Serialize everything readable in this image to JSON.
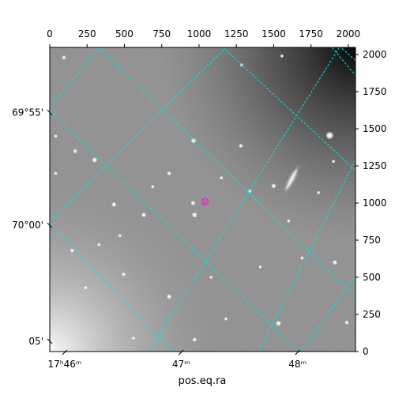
{
  "chart_data": {
    "type": "image",
    "xlabel": "pos.eq.ra",
    "ylabel": "",
    "pixel_axes": {
      "xlim": [
        0,
        2048
      ],
      "ylim": [
        0,
        2048
      ],
      "top_ticks": [
        0,
        250,
        500,
        750,
        1000,
        1250,
        1500,
        1750,
        2000
      ],
      "right_ticks": [
        0,
        250,
        500,
        750,
        1000,
        1250,
        1500,
        1750,
        2000
      ]
    },
    "ra_ticks": [
      {
        "label": "17ʰ46ᵐ",
        "x": 100
      },
      {
        "label": "47ᵐ",
        "x": 880
      },
      {
        "label": "48ᵐ",
        "x": 1660
      }
    ],
    "dec_ticks": [
      {
        "label": "69°55'",
        "y": 1610
      },
      {
        "label": "70°00'",
        "y": 850
      },
      {
        "label": "05'",
        "y": 70
      }
    ],
    "grid": true,
    "grid_color": "#00e5e5",
    "marker": {
      "type": "circle",
      "color": "#cc33cc",
      "x": 1040,
      "y": 1010
    },
    "stars": [
      {
        "x": 1875,
        "y": 1455,
        "b": 1.0
      },
      {
        "x": 1500,
        "y": 1115,
        "b": 0.5
      },
      {
        "x": 963,
        "y": 1420,
        "b": 0.6
      },
      {
        "x": 300,
        "y": 1290,
        "b": 0.6
      },
      {
        "x": 430,
        "y": 990,
        "b": 0.5
      },
      {
        "x": 630,
        "y": 920,
        "b": 0.5
      },
      {
        "x": 970,
        "y": 920,
        "b": 0.6
      },
      {
        "x": 960,
        "y": 1000,
        "b": 0.5
      },
      {
        "x": 800,
        "y": 1200,
        "b": 0.4
      },
      {
        "x": 150,
        "y": 680,
        "b": 0.4
      },
      {
        "x": 495,
        "y": 520,
        "b": 0.4
      },
      {
        "x": 800,
        "y": 370,
        "b": 0.5
      },
      {
        "x": 1532,
        "y": 190,
        "b": 0.6
      },
      {
        "x": 1990,
        "y": 195,
        "b": 0.4
      },
      {
        "x": 1910,
        "y": 600,
        "b": 0.5
      },
      {
        "x": 95,
        "y": 1980,
        "b": 0.4
      },
      {
        "x": 1285,
        "y": 1930,
        "b": 0.3
      },
      {
        "x": 1555,
        "y": 1990,
        "b": 0.3
      },
      {
        "x": 170,
        "y": 1350,
        "b": 0.4
      },
      {
        "x": 1280,
        "y": 1385,
        "b": 0.4
      },
      {
        "x": 1340,
        "y": 1080,
        "b": 0.3
      },
      {
        "x": 1800,
        "y": 1070,
        "b": 0.3
      },
      {
        "x": 1150,
        "y": 1170,
        "b": 0.3
      },
      {
        "x": 690,
        "y": 1110,
        "b": 0.3
      },
      {
        "x": 470,
        "y": 780,
        "b": 0.3
      },
      {
        "x": 1690,
        "y": 630,
        "b": 0.3
      },
      {
        "x": 1080,
        "y": 500,
        "b": 0.3
      },
      {
        "x": 1410,
        "y": 570,
        "b": 0.3
      },
      {
        "x": 40,
        "y": 1450,
        "b": 0.3
      },
      {
        "x": 40,
        "y": 1200,
        "b": 0.3
      },
      {
        "x": 240,
        "y": 430,
        "b": 0.3
      },
      {
        "x": 330,
        "y": 720,
        "b": 0.3
      },
      {
        "x": 1600,
        "y": 880,
        "b": 0.3
      },
      {
        "x": 1900,
        "y": 1280,
        "b": 0.3
      },
      {
        "x": 970,
        "y": 80,
        "b": 0.4
      },
      {
        "x": 1180,
        "y": 220,
        "b": 0.3
      },
      {
        "x": 560,
        "y": 90,
        "b": 0.3
      }
    ],
    "galaxy": {
      "x": 1620,
      "y": 1160,
      "length": 240,
      "width": 55,
      "angle": -62
    }
  }
}
